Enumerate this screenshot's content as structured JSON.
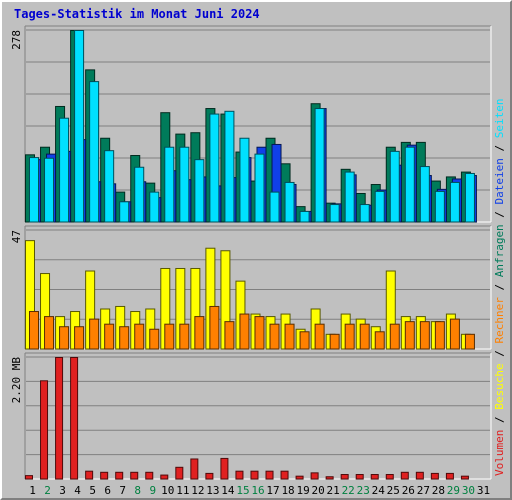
{
  "chart_data": {
    "title": "Tages-Statistik im Monat Juni 2024",
    "x": {
      "labels": [
        "1",
        "2",
        "3",
        "4",
        "5",
        "6",
        "7",
        "8",
        "9",
        "10",
        "11",
        "12",
        "13",
        "14",
        "15",
        "16",
        "17",
        "18",
        "19",
        "20",
        "21",
        "22",
        "23",
        "24",
        "25",
        "26",
        "27",
        "28",
        "29",
        "30",
        "31"
      ],
      "weekend": [
        false,
        true,
        false,
        false,
        false,
        false,
        false,
        true,
        true,
        false,
        false,
        false,
        false,
        false,
        true,
        true,
        false,
        false,
        false,
        false,
        false,
        true,
        true,
        false,
        false,
        false,
        false,
        false,
        true,
        true,
        false
      ]
    },
    "panels": [
      {
        "type": "bar",
        "y_tick": "278",
        "ylim": [
          0,
          278
        ],
        "series": [
          {
            "name": "Anfragen",
            "color": "#007b5a",
            "values": [
              98,
              109,
              168,
              278,
              221,
              122,
              44,
              97,
              57,
              159,
              128,
              130,
              165,
              157,
              102,
              60,
              122,
              85,
              23,
              172,
              28,
              77,
              42,
              55,
              109,
              116,
              116,
              60,
              66,
              73,
              0
            ]
          },
          {
            "name": "Dateien",
            "color": "#1040e8",
            "values": [
              91,
              99,
              103,
              120,
              59,
              56,
              30,
              59,
              36,
              75,
              62,
              66,
              53,
              65,
              94,
              109,
              113,
              55,
              16,
              165,
              27,
              69,
              25,
              47,
              83,
              112,
              68,
              48,
              63,
              68,
              0
            ]
          },
          {
            "name": "Seiten",
            "color": "#00e0ff",
            "values": [
              94,
              93,
              151,
              278,
              204,
              104,
              30,
              80,
              44,
              109,
              109,
              91,
              157,
              161,
              122,
              99,
              44,
              58,
              16,
              165,
              26,
              73,
              26,
              45,
              103,
              109,
              81,
              45,
              58,
              71,
              0
            ]
          }
        ]
      },
      {
        "type": "bar",
        "y_tick": "47",
        "ylim": [
          0,
          47
        ],
        "series": [
          {
            "name": "Besuche",
            "color": "#ffff00",
            "values": [
              43,
              30,
              13,
              15,
              31,
              16,
              17,
              15,
              16,
              32,
              32,
              32,
              40,
              39,
              27,
              14,
              13,
              14,
              8,
              16,
              6,
              14,
              12,
              9,
              31,
              13,
              13,
              11,
              14,
              6,
              0
            ]
          },
          {
            "name": "Rechner",
            "color": "#ff8000",
            "values": [
              15,
              13,
              9,
              9,
              12,
              10,
              9,
              10,
              8,
              10,
              10,
              13,
              17,
              11,
              14,
              13,
              10,
              10,
              7,
              10,
              6,
              10,
              10,
              7,
              10,
              11,
              11,
              11,
              12,
              6,
              0
            ]
          }
        ]
      },
      {
        "type": "bar",
        "y_tick": "2.20 MB",
        "ylim": [
          0,
          2.2
        ],
        "series": [
          {
            "name": "Volumen",
            "color": "#e02020",
            "values": [
              0.07,
              1.78,
              2.3,
              2.3,
              0.15,
              0.13,
              0.13,
              0.13,
              0.13,
              0.08,
              0.22,
              0.37,
              0.11,
              0.38,
              0.15,
              0.15,
              0.15,
              0.15,
              0.06,
              0.12,
              0.05,
              0.09,
              0.09,
              0.09,
              0.09,
              0.13,
              0.13,
              0.11,
              0.11,
              0.06,
              0.0
            ]
          }
        ]
      }
    ],
    "legend": {
      "placement": "right-vertical",
      "separator": " / ",
      "colors": {
        "weekday": "#000000",
        "weekend": "#008040"
      }
    },
    "grid": true,
    "colors": {
      "background": "#c0c0c0",
      "title": "#0000d0",
      "gridline": "#808080",
      "plot_border_dark": "#808080",
      "plot_border_light": "#ffffff"
    }
  }
}
